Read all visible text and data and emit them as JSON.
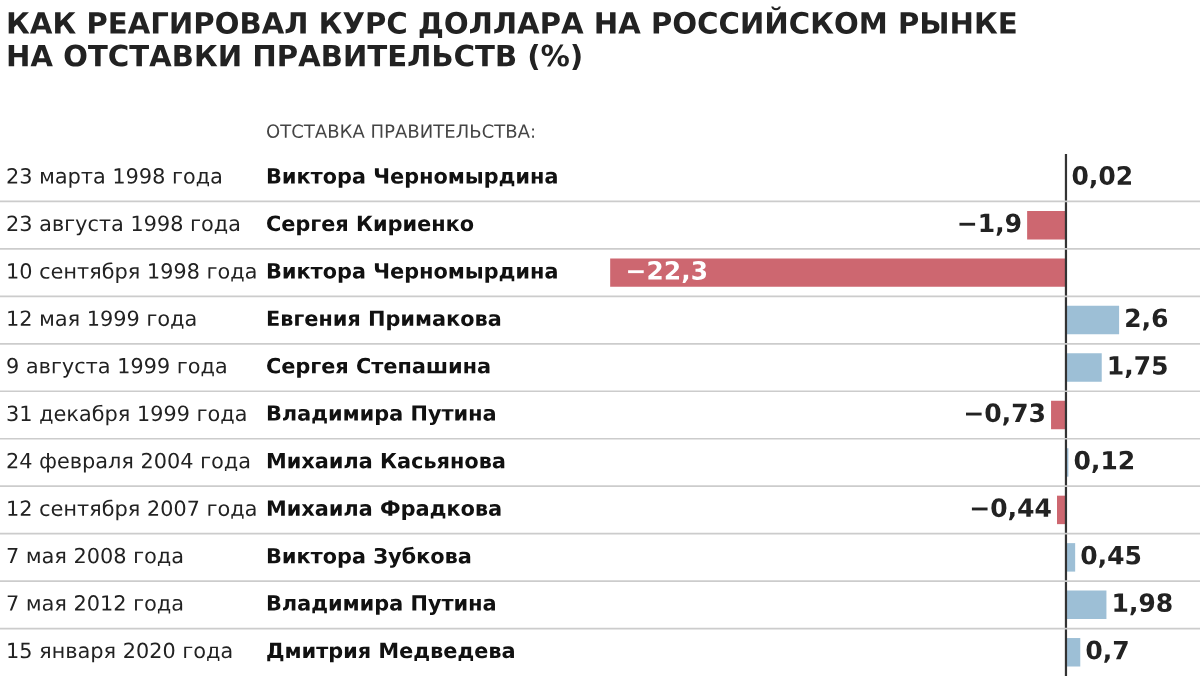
{
  "chart_data": {
    "type": "bar",
    "orientation": "horizontal",
    "title": "КАК РЕАГИРОВАЛ КУРС ДОЛЛАРА НА РОССИЙСКОМ РЫНКЕ\nНА ОТСТАВКИ ПРАВИТЕЛЬСТВ (%)",
    "annotations": [
      "ОТСТАВКА ПРАВИТЕЛЬСТВА:"
    ],
    "categories": [
      "23 марта 1998 года",
      "23 августа 1998 года",
      "10 сентября 1998 года",
      "12 мая 1999 года",
      "9 августа 1999 года",
      "31 декабря 1999 года",
      "24 февраля 2004 года",
      "12 сентября 2007 года",
      "7 мая 2008 года",
      "7 мая 2012 года",
      "15 января 2020 года"
    ],
    "y2_categories": [
      "Виктора Черномырдина",
      "Сергея Кириенко",
      "Виктора Черномырдина",
      "Евгения Примакова",
      "Сергея Степашина",
      "Владимира Путина",
      "Михаила Касьянова",
      "Михаила Фрадкова",
      "Виктора Зубкова",
      "Владимира Путина",
      "Дмитрия Медведева"
    ],
    "values": [
      0.02,
      -1.9,
      -22.3,
      2.6,
      1.75,
      -0.73,
      0.12,
      -0.44,
      0.45,
      1.98,
      0.7
    ],
    "colors": [
      "#9dbfd6",
      "#cd6770",
      "#cd6770",
      "#9dbfd6",
      "#9dbfd6",
      "#cd6770",
      "#9dbfd6",
      "#cd6770",
      "#9dbfd6",
      "#9dbfd6",
      "#9dbfd6"
    ],
    "value_labels": [
      "0,02",
      "−1,9",
      "−22,3",
      "2,6",
      "1,75",
      "−0,73",
      "0,12",
      "−0,44",
      "0,45",
      "1,98",
      "0,7"
    ],
    "tick_labels": "y"
  }
}
